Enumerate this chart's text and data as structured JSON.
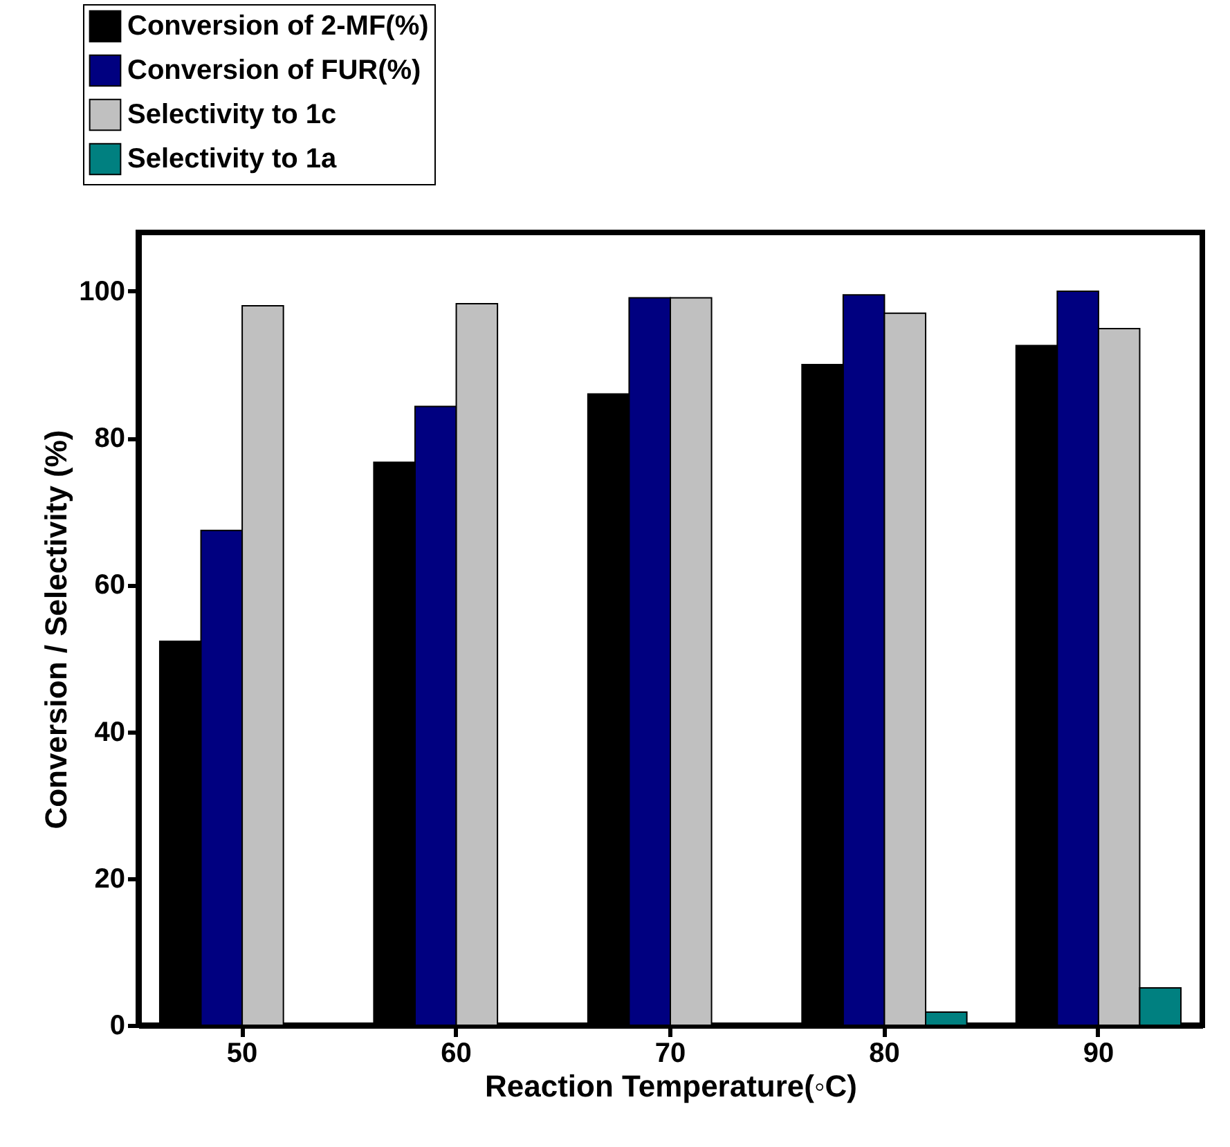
{
  "chart_data": {
    "type": "bar",
    "xlabel": "Reaction Temperature(◦C)",
    "ylabel": "Conversion / Selectivity (%)",
    "categories": [
      "50",
      "60",
      "70",
      "80",
      "90"
    ],
    "series": [
      {
        "name": "Conversion of 2-MF(%)",
        "color": "#000000",
        "values": [
          52.3,
          76.7,
          86.0,
          90.0,
          92.6
        ]
      },
      {
        "name": "Conversion of FUR(%)",
        "color": "#000080",
        "values": [
          67.4,
          84.3,
          99.1,
          99.5,
          100
        ]
      },
      {
        "name": "Selectivity to 1c",
        "color": "#c0c0c0",
        "values": [
          98.0,
          98.3,
          99.1,
          97.0,
          94.9
        ]
      },
      {
        "name": "Selectivity to 1a",
        "color": "#008080",
        "values": [
          null,
          null,
          null,
          1.8,
          5.1
        ]
      }
    ],
    "ylim": [
      0,
      108
    ],
    "yticks": [
      0,
      20,
      40,
      60,
      80,
      100
    ],
    "grid": false,
    "legend": "top left"
  }
}
